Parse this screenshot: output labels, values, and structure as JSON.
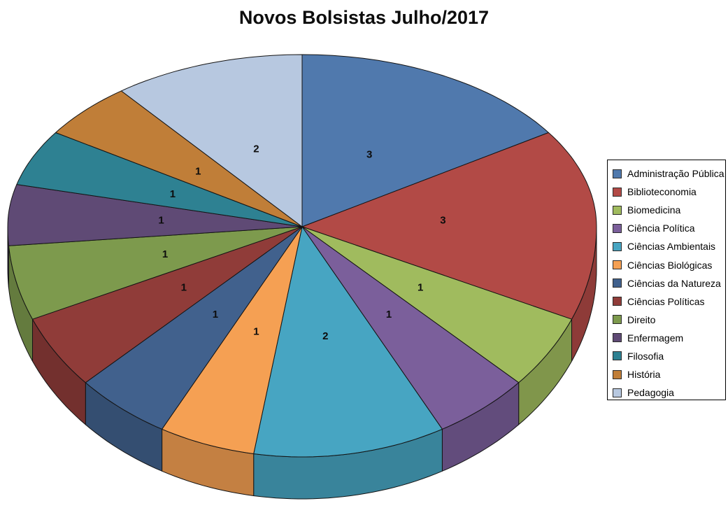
{
  "title": "Novos Bolsistas Julho/2017",
  "chart_data": {
    "type": "pie",
    "title": "Novos Bolsistas Julho/2017",
    "effect": "3d",
    "start_angle_deg": 0,
    "direction": "clockwise",
    "legend_position": "right",
    "data_labels_shown": true,
    "total": 19,
    "categories": [
      "Administração Pública",
      "Biblioteconomia",
      "Biomedicina",
      "Ciência Política",
      "Ciências Ambientais",
      "Ciências Biológicas",
      "Ciências da Natureza",
      "Ciências Políticas",
      "Direito",
      "Enfermagem",
      "Filosofia",
      "História",
      "Pedagogia"
    ],
    "values": [
      3,
      3,
      1,
      1,
      2,
      1,
      1,
      1,
      1,
      1,
      1,
      1,
      2
    ],
    "data_labels": [
      "3",
      "3",
      "1",
      "1",
      "2",
      "1",
      "1",
      "1",
      "1",
      "1",
      "1",
      "1",
      "2"
    ],
    "colors": [
      "#5079AD",
      "#B24A46",
      "#A0BB5E",
      "#7B5F9B",
      "#47A5C2",
      "#F5A053",
      "#41618D",
      "#903C39",
      "#7D9A4D",
      "#5F4A75",
      "#2E8192",
      "#C07E38",
      "#B7C8E0"
    ],
    "background_color": "#FFFFFF",
    "title_color": "#0D0D0D",
    "label_color": "#0D0D0D"
  }
}
